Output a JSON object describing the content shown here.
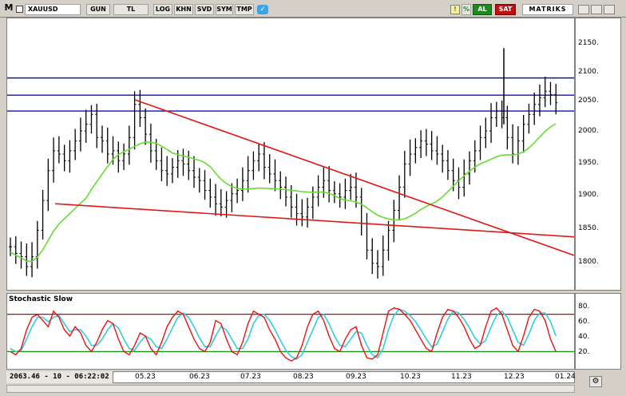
{
  "toolbar": {
    "m_label": "M",
    "symbol": "XAUUSD",
    "period": "GUN",
    "currency": "TL",
    "buttons": [
      "LOG",
      "KHN",
      "SVD",
      "SYM",
      "TMP"
    ],
    "al_label": "AL",
    "sat_label": "SAT",
    "brand": "MATRIKS",
    "percent_label": "%",
    "colors": {
      "al": "#1f8a1f",
      "sat": "#c01010",
      "brand_bg": "#ffffff"
    }
  },
  "status": {
    "text": "2063.46 - 10 - 06:22:02"
  },
  "price_axis": {
    "ticks": [
      "2150.",
      "2100.",
      "2050.",
      "2000.",
      "1950.",
      "1900.",
      "1850.",
      "1800."
    ]
  },
  "stoch_axis": {
    "ticks": [
      "80.",
      "60.",
      "40.",
      "20."
    ]
  },
  "x_axis": {
    "ticks": [
      "05.23",
      "06.23",
      "07.23",
      "08.23",
      "09.23",
      "10.23",
      "11.23",
      "12.23",
      "01.24"
    ]
  },
  "chart_data": [
    {
      "type": "bar",
      "title": "",
      "series_note": "OHLC daily price bars",
      "y_range": [
        1780,
        2190
      ],
      "colors": {
        "bars": "#000000",
        "sma": "#66dd33",
        "horizontal": "#1010b0",
        "trend": "#e01818"
      },
      "horizontal_levels": [
        2100,
        2074,
        2050
      ],
      "trendlines": [
        {
          "from": [
            "04.23",
            1910
          ],
          "to": [
            "01.24",
            1860
          ]
        },
        {
          "from": [
            "05.23",
            2067
          ],
          "to": [
            "01.24",
            1832
          ]
        }
      ],
      "close_approx": [
        1845,
        1835,
        1830,
        1815,
        1830,
        1870,
        1915,
        1960,
        1990,
        1985,
        1975,
        1990,
        2005,
        2020,
        2030,
        2045,
        2010,
        2005,
        1985,
        1990,
        1975,
        1985,
        2010,
        2060,
        2040,
        2015,
        1990,
        1975,
        1960,
        1955,
        1965,
        1975,
        1970,
        1960,
        1950,
        1945,
        1930,
        1920,
        1910,
        1905,
        1915,
        1925,
        1930,
        1945,
        1960,
        1975,
        1985,
        1965,
        1955,
        1945,
        1935,
        1920,
        1905,
        1895,
        1890,
        1905,
        1920,
        1935,
        1945,
        1930,
        1925,
        1920,
        1930,
        1935,
        1920,
        1880,
        1840,
        1820,
        1815,
        1840,
        1870,
        1900,
        1935,
        1970,
        1985,
        1995,
        2005,
        2000,
        1990,
        1985,
        1975,
        1960,
        1945,
        1935,
        1955,
        1975,
        1990,
        2010,
        2020,
        2040,
        2050,
        2040,
        2010,
        1985,
        2005,
        2030,
        2045,
        2060,
        2070,
        2080,
        2075,
        2063
      ]
    },
    {
      "type": "line",
      "title": "Stochastic Slow",
      "y_range": [
        0,
        100
      ],
      "levels": [
        80,
        20
      ],
      "colors": {
        "k": "#ee1111",
        "d": "#33ccdd",
        "upper": "#aa1111",
        "lower": "#119911"
      },
      "k_values": [
        20,
        15,
        25,
        55,
        75,
        80,
        70,
        60,
        85,
        75,
        55,
        45,
        60,
        50,
        30,
        20,
        35,
        55,
        70,
        65,
        40,
        20,
        15,
        30,
        50,
        45,
        25,
        15,
        35,
        60,
        75,
        85,
        80,
        60,
        40,
        25,
        20,
        35,
        70,
        65,
        40,
        20,
        15,
        35,
        65,
        85,
        80,
        75,
        55,
        40,
        20,
        10,
        5,
        10,
        30,
        60,
        80,
        85,
        70,
        45,
        25,
        20,
        40,
        55,
        60,
        30,
        10,
        8,
        15,
        50,
        85,
        90,
        88,
        80,
        70,
        55,
        40,
        25,
        20,
        50,
        75,
        88,
        85,
        75,
        60,
        40,
        25,
        30,
        60,
        85,
        90,
        80,
        55,
        30,
        20,
        45,
        75,
        88,
        85,
        70,
        40,
        20
      ],
      "d_values": [
        25,
        20,
        22,
        40,
        60,
        75,
        75,
        68,
        75,
        78,
        65,
        52,
        55,
        55,
        45,
        30,
        30,
        40,
        55,
        65,
        58,
        40,
        25,
        22,
        35,
        45,
        40,
        28,
        25,
        40,
        58,
        75,
        82,
        75,
        60,
        42,
        28,
        28,
        45,
        60,
        55,
        40,
        25,
        25,
        40,
        65,
        78,
        80,
        70,
        55,
        38,
        22,
        12,
        8,
        15,
        35,
        55,
        75,
        80,
        65,
        45,
        30,
        28,
        40,
        52,
        50,
        30,
        15,
        10,
        25,
        55,
        78,
        88,
        85,
        78,
        68,
        55,
        40,
        28,
        32,
        52,
        72,
        85,
        82,
        72,
        58,
        42,
        32,
        38,
        60,
        78,
        85,
        75,
        55,
        35,
        30,
        48,
        70,
        82,
        82,
        68,
        45
      ]
    }
  ]
}
